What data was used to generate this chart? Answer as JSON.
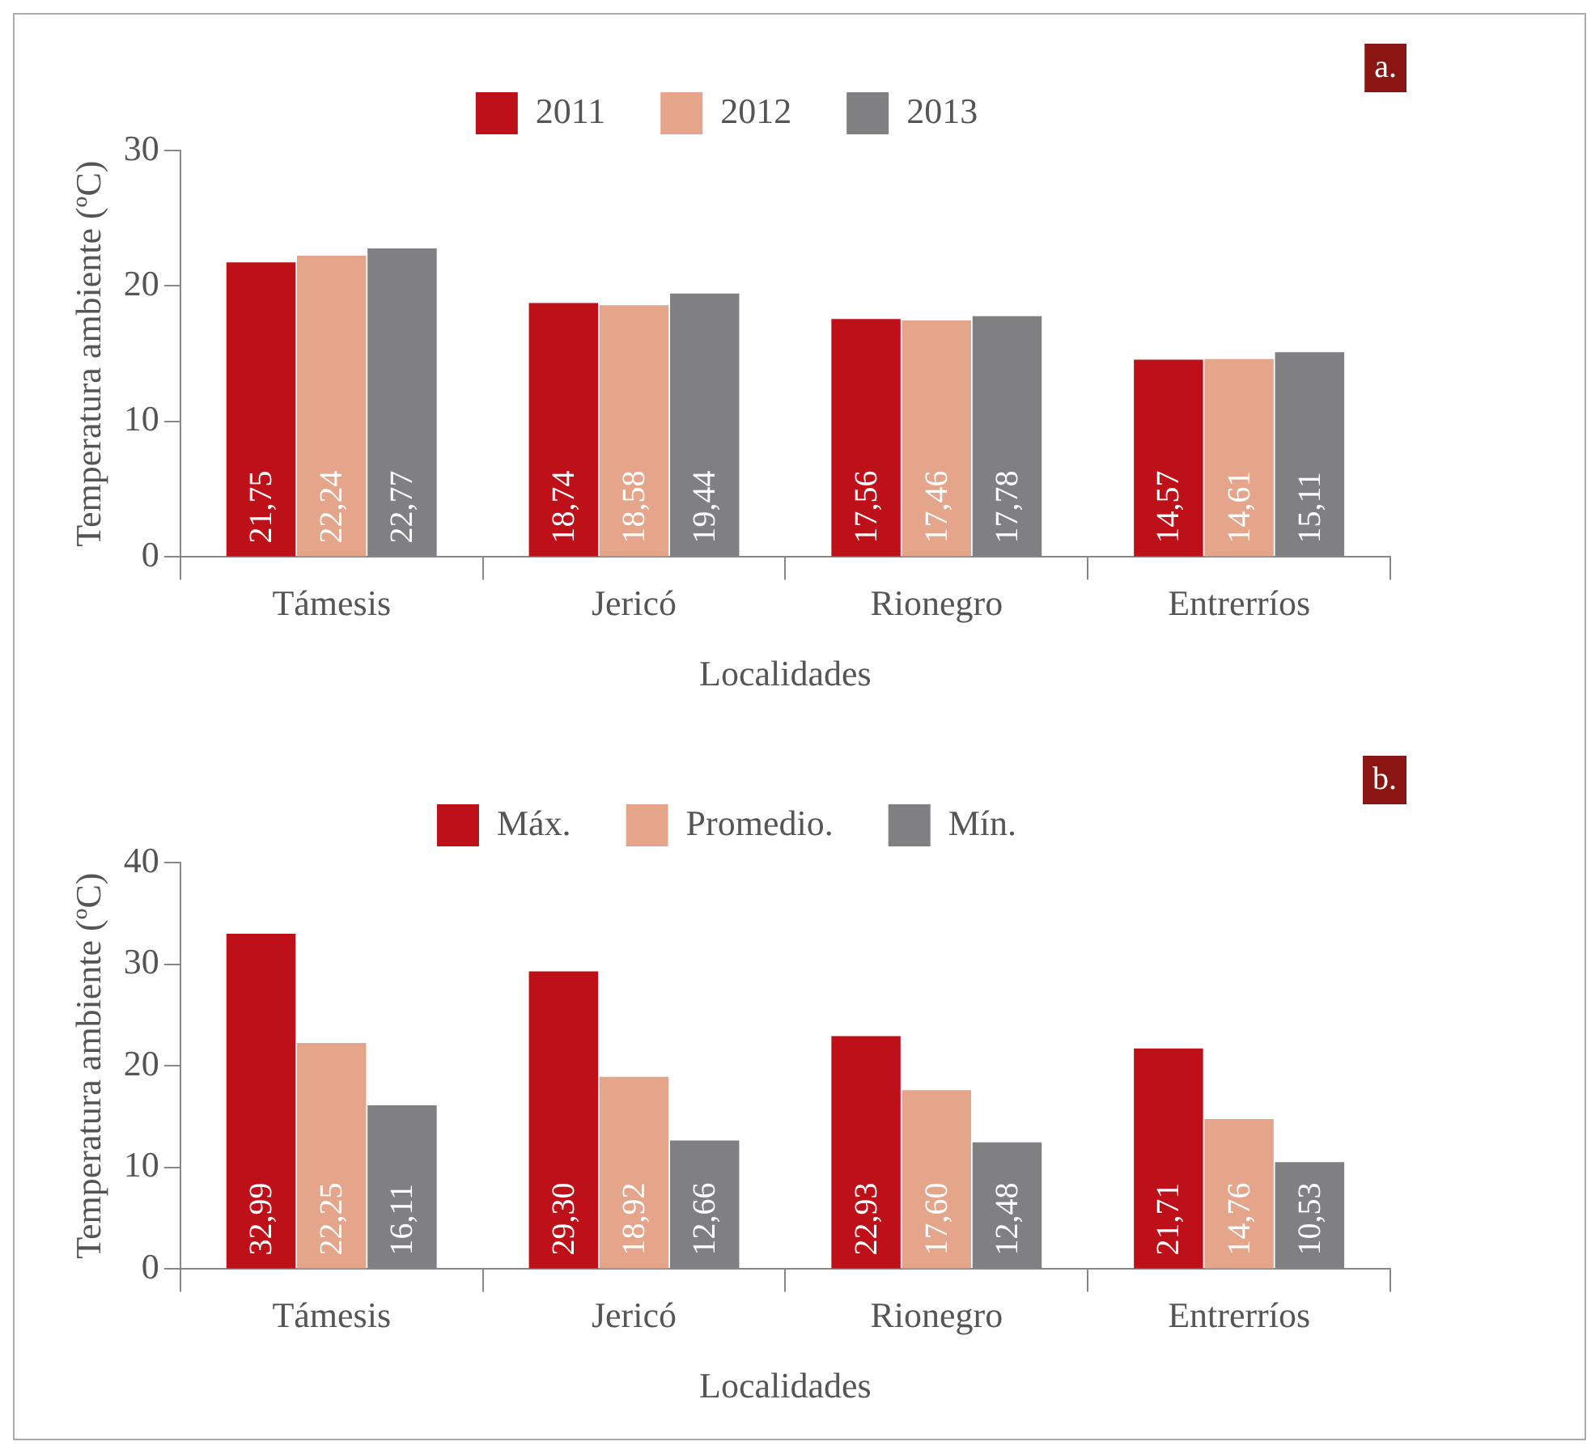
{
  "chart_data": [
    {
      "type": "bar",
      "categories": [
        "Támesis",
        "Jericó",
        "Rionegro",
        "Entrerríos"
      ],
      "xlabel": "Localidades",
      "ylabel": "Temperatura ambiente (ºC)",
      "annotations": [
        "a."
      ],
      "series": [
        {
          "name": "2011",
          "color": "#be1018",
          "values": [
            21.75,
            18.74,
            17.56,
            14.57
          ],
          "value_labels": [
            "21,75",
            "18,74",
            "17,56",
            "14,57"
          ]
        },
        {
          "name": "2012",
          "color": "#e5a58a",
          "values": [
            22.24,
            18.58,
            17.46,
            14.61
          ],
          "value_labels": [
            "22,24",
            "18,58",
            "17,46",
            "14,61"
          ]
        },
        {
          "name": "2013",
          "color": "#808083",
          "values": [
            22.77,
            19.44,
            17.78,
            15.11
          ],
          "value_labels": [
            "22,77",
            "19,44",
            "17,78",
            "15,11"
          ]
        }
      ],
      "ylim": [
        0,
        30
      ],
      "yticks": [
        0,
        10,
        20,
        30
      ],
      "grid": false,
      "legend": "top"
    },
    {
      "type": "bar",
      "categories": [
        "Támesis",
        "Jericó",
        "Rionegro",
        "Entrerríos"
      ],
      "xlabel": "Localidades",
      "ylabel": "Temperatura ambiente (ºC)",
      "annotations": [
        "b."
      ],
      "series": [
        {
          "name": "Máx.",
          "color": "#be1018",
          "values": [
            32.99,
            29.3,
            22.93,
            21.71
          ],
          "value_labels": [
            "32,99",
            "29,30",
            "22,93",
            "21,71"
          ]
        },
        {
          "name": "Promedio.",
          "color": "#e5a58a",
          "values": [
            22.25,
            18.92,
            17.6,
            14.76
          ],
          "value_labels": [
            "22,25",
            "18,92",
            "17,60",
            "14,76"
          ]
        },
        {
          "name": "Mín.",
          "color": "#808083",
          "values": [
            16.11,
            12.66,
            12.48,
            10.53
          ],
          "value_labels": [
            "16,11",
            "12,66",
            "12,48",
            "10,53"
          ]
        }
      ],
      "ylim": [
        0,
        40
      ],
      "yticks": [
        0,
        10,
        20,
        30,
        40
      ],
      "grid": false,
      "legend": "top"
    }
  ]
}
